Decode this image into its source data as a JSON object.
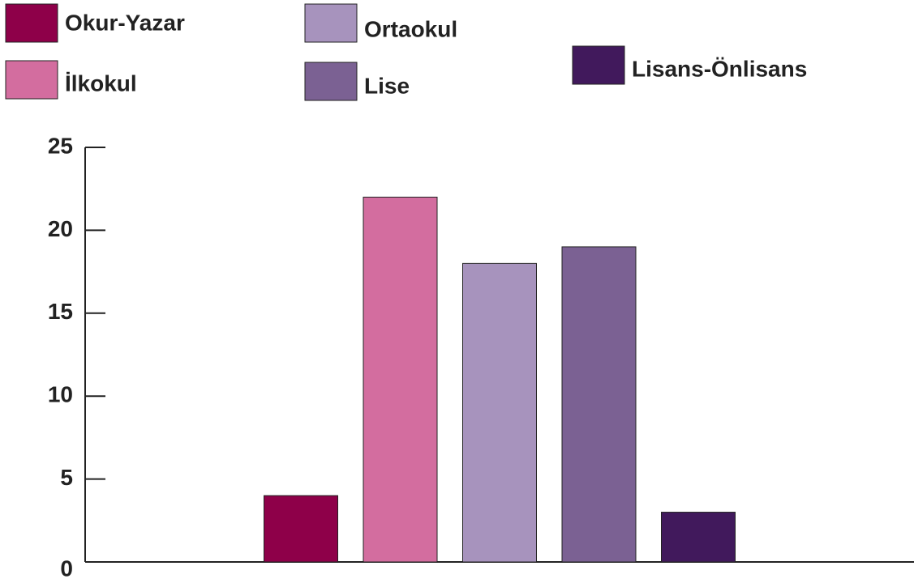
{
  "chart_data": {
    "type": "bar",
    "categories": [
      null
    ],
    "series": [
      {
        "name": "Okur-Yazar",
        "color": "#8e0049",
        "values": [
          4
        ]
      },
      {
        "name": "İlkokul",
        "color": "#d36d9f",
        "values": [
          22
        ]
      },
      {
        "name": "Ortaokul",
        "color": "#a793bd",
        "values": [
          18
        ]
      },
      {
        "name": "Lise",
        "color": "#7b6193",
        "values": [
          19
        ]
      },
      {
        "name": "Lisans-Önlisans",
        "color": "#41195c",
        "values": [
          3
        ]
      }
    ],
    "ylim": [
      0,
      25
    ],
    "yticks": [
      0,
      5,
      10,
      15,
      20,
      25
    ]
  }
}
